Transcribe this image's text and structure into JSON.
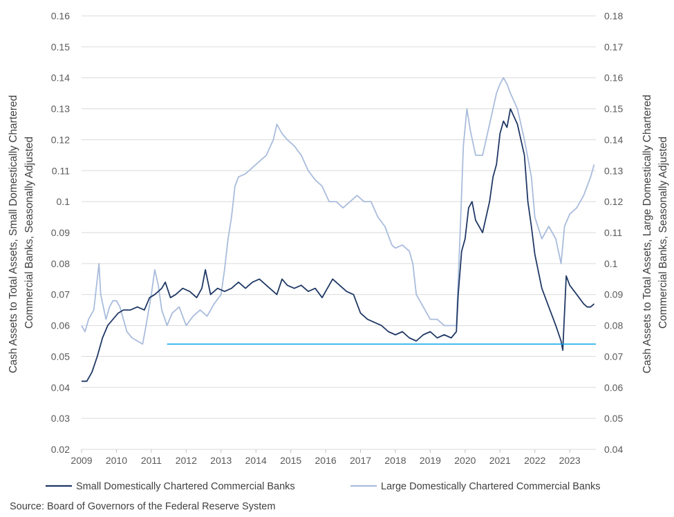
{
  "chart_data": {
    "type": "line",
    "title": "",
    "xlabel": "",
    "ylabel_left": "Cash Assets to Total Assets, Small Domestically Chartered Commercial Banks, Seasonally Adjusted",
    "ylabel_left_lines": [
      "Cash Assets to Total Assets, Small Domestically Chartered",
      "Commercial Banks, Seasonally Adjusted"
    ],
    "ylabel_right": "Cash Assets to Total Assets, Large Domestically Chartered Commercial Banks, Seasonally Adjusted",
    "ylabel_right_lines": [
      "Cash Assets to Total Assets, Large Domestically Chartered",
      "Commercial Banks, Seasonally Adjusted"
    ],
    "xlim": [
      2009,
      2023.75
    ],
    "ylim_left": [
      0.02,
      0.16
    ],
    "ylim_right": [
      0.04,
      0.18
    ],
    "yticks_left": [
      "0.02",
      "0.03",
      "0.04",
      "0.05",
      "0.06",
      "0.07",
      "0.08",
      "0.09",
      "0.1",
      "0.11",
      "0.12",
      "0.13",
      "0.14",
      "0.15",
      "0.16"
    ],
    "yticks_right": [
      "0.04",
      "0.05",
      "0.06",
      "0.07",
      "0.08",
      "0.09",
      "0.1",
      "0.11",
      "0.12",
      "0.13",
      "0.14",
      "0.15",
      "0.16",
      "0.17",
      "0.18"
    ],
    "xticks": [
      "2009",
      "2010",
      "2011",
      "2012",
      "2013",
      "2014",
      "2015",
      "2016",
      "2017",
      "2018",
      "2019",
      "2020",
      "2021",
      "2022",
      "2023"
    ],
    "grid": "horizontal",
    "legend_position": "bottom",
    "series": [
      {
        "name": "Small Domestically Chartered Commercial Banks",
        "axis": "left",
        "color": "#1f3864",
        "x": [
          2009.0,
          2009.15,
          2009.3,
          2009.45,
          2009.6,
          2009.75,
          2009.9,
          2010.05,
          2010.2,
          2010.4,
          2010.6,
          2010.8,
          2010.95,
          2011.1,
          2011.3,
          2011.4,
          2011.55,
          2011.7,
          2011.9,
          2012.1,
          2012.3,
          2012.45,
          2012.55,
          2012.7,
          2012.9,
          2013.1,
          2013.3,
          2013.5,
          2013.7,
          2013.9,
          2014.1,
          2014.3,
          2014.5,
          2014.6,
          2014.75,
          2014.9,
          2015.1,
          2015.3,
          2015.5,
          2015.7,
          2015.9,
          2016.05,
          2016.2,
          2016.4,
          2016.6,
          2016.8,
          2017.0,
          2017.2,
          2017.4,
          2017.6,
          2017.8,
          2018.0,
          2018.2,
          2018.4,
          2018.6,
          2018.8,
          2019.0,
          2019.2,
          2019.4,
          2019.6,
          2019.75,
          2019.8,
          2019.9,
          2020.0,
          2020.1,
          2020.2,
          2020.3,
          2020.5,
          2020.7,
          2020.8,
          2020.9,
          2021.0,
          2021.1,
          2021.2,
          2021.3,
          2021.5,
          2021.7,
          2021.8,
          2021.9,
          2022.0,
          2022.2,
          2022.4,
          2022.6,
          2022.75,
          2022.8,
          2022.9,
          2023.0,
          2023.2,
          2023.4,
          2023.5,
          2023.6,
          2023.7
        ],
        "values": [
          0.042,
          0.042,
          0.045,
          0.05,
          0.056,
          0.06,
          0.062,
          0.064,
          0.065,
          0.065,
          0.066,
          0.065,
          0.069,
          0.07,
          0.072,
          0.074,
          0.069,
          0.07,
          0.072,
          0.071,
          0.069,
          0.072,
          0.078,
          0.07,
          0.072,
          0.071,
          0.072,
          0.074,
          0.072,
          0.074,
          0.075,
          0.073,
          0.071,
          0.07,
          0.075,
          0.073,
          0.072,
          0.073,
          0.071,
          0.072,
          0.069,
          0.072,
          0.075,
          0.073,
          0.071,
          0.07,
          0.064,
          0.062,
          0.061,
          0.06,
          0.058,
          0.057,
          0.058,
          0.056,
          0.055,
          0.057,
          0.058,
          0.056,
          0.057,
          0.056,
          0.058,
          0.07,
          0.084,
          0.088,
          0.098,
          0.1,
          0.094,
          0.09,
          0.1,
          0.108,
          0.112,
          0.122,
          0.126,
          0.124,
          0.13,
          0.125,
          0.115,
          0.1,
          0.092,
          0.083,
          0.072,
          0.066,
          0.06,
          0.055,
          0.052,
          0.076,
          0.073,
          0.07,
          0.067,
          0.066,
          0.066,
          0.067
        ]
      },
      {
        "name": "Large Domestically Chartered Commercial Banks",
        "axis": "right",
        "color": "#a9bcdc",
        "x": [
          2009.0,
          2009.1,
          2009.2,
          2009.35,
          2009.45,
          2009.5,
          2009.55,
          2009.7,
          2009.8,
          2009.9,
          2010.0,
          2010.1,
          2010.2,
          2010.3,
          2010.45,
          2010.6,
          2010.75,
          2010.85,
          2011.0,
          2011.1,
          2011.2,
          2011.3,
          2011.45,
          2011.6,
          2011.8,
          2012.0,
          2012.2,
          2012.4,
          2012.6,
          2012.8,
          2013.0,
          2013.1,
          2013.2,
          2013.3,
          2013.4,
          2013.5,
          2013.7,
          2013.9,
          2014.1,
          2014.3,
          2014.5,
          2014.6,
          2014.75,
          2014.9,
          2015.1,
          2015.3,
          2015.5,
          2015.7,
          2015.9,
          2016.1,
          2016.3,
          2016.5,
          2016.7,
          2016.9,
          2017.1,
          2017.3,
          2017.5,
          2017.7,
          2017.9,
          2018.0,
          2018.2,
          2018.4,
          2018.5,
          2018.6,
          2018.8,
          2019.0,
          2019.2,
          2019.4,
          2019.6,
          2019.75,
          2019.85,
          2019.95,
          2020.05,
          2020.15,
          2020.3,
          2020.5,
          2020.7,
          2020.8,
          2020.9,
          2021.0,
          2021.1,
          2021.2,
          2021.3,
          2021.5,
          2021.7,
          2021.9,
          2022.0,
          2022.2,
          2022.4,
          2022.6,
          2022.75,
          2022.85,
          2023.0,
          2023.2,
          2023.4,
          2023.5,
          2023.6,
          2023.7
        ],
        "values": [
          0.08,
          0.078,
          0.082,
          0.085,
          0.095,
          0.1,
          0.09,
          0.082,
          0.086,
          0.088,
          0.088,
          0.086,
          0.082,
          0.078,
          0.076,
          0.075,
          0.074,
          0.08,
          0.09,
          0.098,
          0.093,
          0.085,
          0.08,
          0.084,
          0.086,
          0.08,
          0.083,
          0.085,
          0.083,
          0.087,
          0.09,
          0.098,
          0.108,
          0.115,
          0.125,
          0.128,
          0.129,
          0.131,
          0.133,
          0.135,
          0.14,
          0.145,
          0.142,
          0.14,
          0.138,
          0.135,
          0.13,
          0.127,
          0.125,
          0.12,
          0.12,
          0.118,
          0.12,
          0.122,
          0.12,
          0.12,
          0.115,
          0.112,
          0.106,
          0.105,
          0.106,
          0.104,
          0.1,
          0.09,
          0.086,
          0.082,
          0.082,
          0.08,
          0.08,
          0.08,
          0.108,
          0.138,
          0.15,
          0.143,
          0.135,
          0.135,
          0.145,
          0.15,
          0.155,
          0.158,
          0.16,
          0.158,
          0.155,
          0.15,
          0.14,
          0.128,
          0.115,
          0.108,
          0.112,
          0.108,
          0.1,
          0.112,
          0.116,
          0.118,
          0.122,
          0.125,
          0.128,
          0.132
        ]
      },
      {
        "name": "",
        "axis": "left",
        "color": "#00a2e8",
        "x": [
          2011.45,
          2023.75
        ],
        "values": [
          0.054,
          0.054
        ]
      }
    ]
  },
  "legend": {
    "small_label": "Small Domestically Chartered Commercial Banks",
    "large_label": "Large Domestically Chartered Commercial Banks"
  },
  "footer": {
    "source": "Source: Board of Governors of the Federal Reserve System"
  }
}
